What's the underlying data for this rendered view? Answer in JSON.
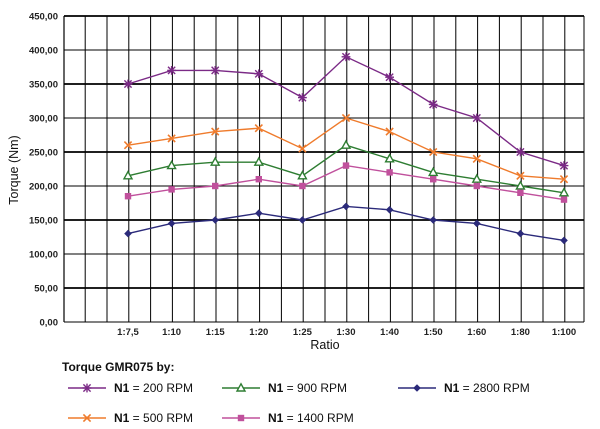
{
  "chart_data": {
    "type": "line",
    "title": "",
    "xlabel": "Ratio",
    "ylabel": "Torque (Nm)",
    "ylim": [
      0,
      450
    ],
    "ytick_step": 50,
    "ytick_labels": [
      "0,00",
      "50,00",
      "100,00",
      "150,00",
      "200,00",
      "250,00",
      "300,00",
      "350,00",
      "400,00",
      "450,00"
    ],
    "categories": [
      "1:7,5",
      "1:10",
      "1:15",
      "1:20",
      "1:25",
      "1:30",
      "1:40",
      "1:50",
      "1:60",
      "1:80",
      "1:100"
    ],
    "grid": true,
    "legend_title": "Torque GMR075 by:",
    "series": [
      {
        "name": "N1 = 200 RPM",
        "prefix": "N1",
        "rest": " = 200 RPM",
        "color": "#7b2a86",
        "marker": "asterisk",
        "values": [
          350,
          370,
          370,
          365,
          330,
          390,
          360,
          320,
          300,
          250,
          230
        ]
      },
      {
        "name": "N1 = 500 RPM",
        "prefix": "N1",
        "rest": " = 500 RPM",
        "color": "#ef7b2c",
        "marker": "x",
        "values": [
          260,
          270,
          280,
          285,
          255,
          300,
          280,
          250,
          240,
          215,
          210
        ]
      },
      {
        "name": "N1 = 900 RPM",
        "prefix": "N1",
        "rest": " = 900 RPM",
        "color": "#2e7d32",
        "marker": "triangle",
        "values": [
          215,
          230,
          235,
          235,
          215,
          260,
          240,
          220,
          210,
          200,
          190
        ]
      },
      {
        "name": "N1 = 1400 RPM",
        "prefix": "N1",
        "rest": " = 1400 RPM",
        "color": "#c0509c",
        "marker": "square",
        "values": [
          185,
          195,
          200,
          210,
          200,
          230,
          220,
          210,
          200,
          190,
          180
        ]
      },
      {
        "name": "N1 = 2800 RPM",
        "prefix": "N1",
        "rest": " = 2800 RPM",
        "color": "#2b2a7a",
        "marker": "diamond",
        "values": [
          130,
          145,
          150,
          160,
          150,
          170,
          165,
          150,
          145,
          130,
          120
        ]
      }
    ]
  }
}
